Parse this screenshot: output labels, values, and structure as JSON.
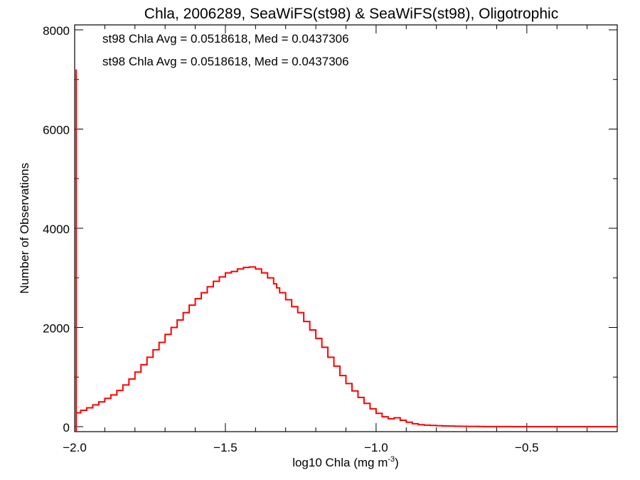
{
  "chart_data": {
    "type": "line",
    "title": "Chla, 2006289, SeaWiFS(st98) & SeaWiFS(st98), Oligotrophic",
    "xlabel_main": "log10 Chla (mg m",
    "xlabel_exp": "-3",
    "xlabel_close": ")",
    "ylabel": "Number of Observations",
    "xlim": [
      -2.0,
      -0.2
    ],
    "ylim": [
      -100,
      8100
    ],
    "x_ticks": [
      -2.0,
      -1.5,
      -1.0,
      -0.5
    ],
    "x_tick_labels": [
      "−2.0",
      "−1.5",
      "−1.0",
      "−0.5"
    ],
    "y_ticks": [
      0,
      2000,
      4000,
      6000,
      8000
    ],
    "y_tick_labels": [
      "0",
      "2000",
      "4000",
      "6000",
      "8000"
    ],
    "grid": false,
    "annotations": [
      {
        "text": "st98 Chla Avg = 0.0518618, Med = 0.0437306",
        "color": "#000000"
      },
      {
        "text": "st98 Chla Avg = 0.0518618, Med = 0.0437306",
        "color": "#ff0000"
      }
    ],
    "spike": {
      "x": -1.995,
      "y": 7200
    },
    "series": [
      {
        "color": "#ff0000",
        "style": "step",
        "x": [
          -1.995,
          -1.98,
          -1.96,
          -1.94,
          -1.92,
          -1.9,
          -1.88,
          -1.86,
          -1.84,
          -1.82,
          -1.8,
          -1.78,
          -1.76,
          -1.74,
          -1.72,
          -1.7,
          -1.68,
          -1.66,
          -1.64,
          -1.62,
          -1.6,
          -1.58,
          -1.56,
          -1.54,
          -1.52,
          -1.5,
          -1.48,
          -1.46,
          -1.44,
          -1.42,
          -1.4,
          -1.38,
          -1.36,
          -1.34,
          -1.33,
          -1.32,
          -1.3,
          -1.28,
          -1.26,
          -1.24,
          -1.22,
          -1.2,
          -1.18,
          -1.16,
          -1.14,
          -1.12,
          -1.1,
          -1.08,
          -1.06,
          -1.04,
          -1.02,
          -1.0,
          -0.98,
          -0.96,
          -0.94,
          -0.92,
          -0.9,
          -0.88,
          -0.86,
          -0.84,
          -0.82,
          -0.8,
          -0.78,
          -0.76,
          -0.74,
          -0.72,
          -0.7,
          -0.68,
          -0.66,
          -0.64,
          -0.62,
          -0.6,
          -0.55,
          -0.5,
          -0.45,
          -0.4,
          -0.35,
          -0.3,
          -0.25,
          -0.2
        ],
        "y": [
          280,
          330,
          380,
          440,
          500,
          570,
          640,
          730,
          840,
          960,
          1100,
          1250,
          1400,
          1550,
          1700,
          1860,
          2000,
          2150,
          2300,
          2450,
          2580,
          2700,
          2820,
          2930,
          3020,
          3100,
          3130,
          3180,
          3210,
          3220,
          3180,
          3100,
          3000,
          2880,
          2800,
          2700,
          2560,
          2420,
          2300,
          2120,
          1950,
          1780,
          1600,
          1400,
          1220,
          1030,
          870,
          720,
          590,
          470,
          360,
          270,
          200,
          160,
          180,
          130,
          90,
          60,
          40,
          30,
          25,
          20,
          15,
          12,
          10,
          8,
          6,
          5,
          4,
          3,
          2,
          2,
          1,
          1,
          1,
          1,
          1,
          1,
          1,
          1
        ]
      }
    ]
  }
}
